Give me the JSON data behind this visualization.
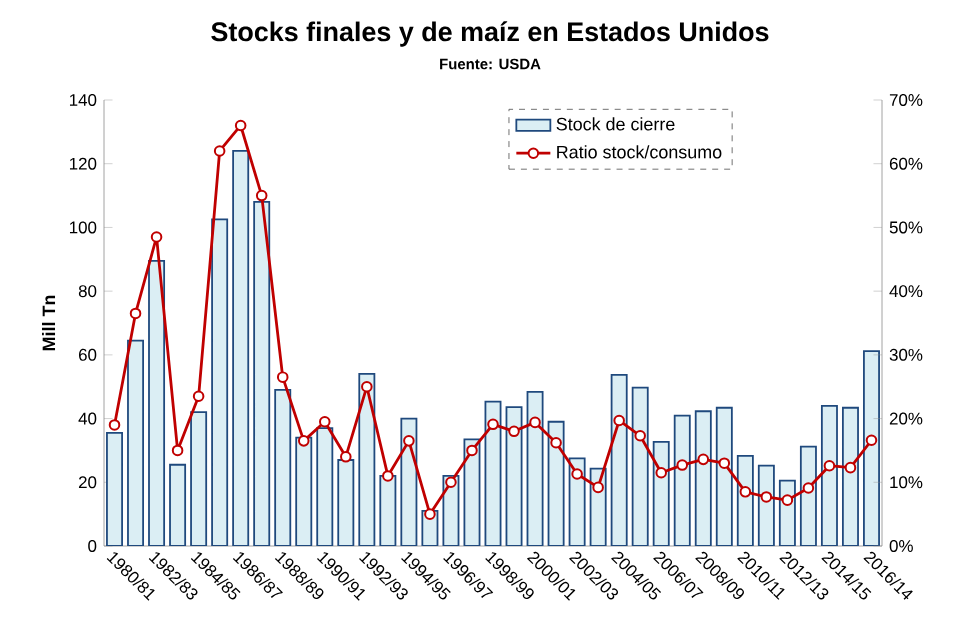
{
  "chart_data": {
    "type": "bar",
    "title": "Stocks finales y de maíz en Estados Unidos",
    "subtitle": "Fuente: USDA",
    "ylabel": "Mill Tn",
    "categories": [
      "1980/81",
      null,
      "1982/83",
      null,
      "1984/85",
      null,
      "1986/87",
      null,
      "1988/89",
      null,
      "1990/91",
      null,
      "1992/93",
      null,
      "1994/95",
      null,
      "1996/97",
      null,
      "1998/99",
      null,
      "2000/01",
      null,
      "2002/03",
      null,
      "2004/05",
      null,
      "2006/07",
      null,
      "2008/09",
      null,
      "2010/11",
      null,
      "2012/13",
      null,
      "2014/15",
      null,
      "2016/14"
    ],
    "series": [
      {
        "name": "Stock de cierre",
        "color": "#dbeef4",
        "values": [
          35.5,
          64.5,
          89.5,
          25.5,
          42,
          102.5,
          124,
          108,
          49,
          34,
          37,
          27,
          54,
          22,
          40,
          11,
          22,
          33.5,
          45.3,
          43.6,
          48.4,
          39,
          27.5,
          24.3,
          53.7,
          49.7,
          32.7,
          40.9,
          42.3,
          43.4,
          28.3,
          25.2,
          20.5,
          31.2,
          44,
          43.4,
          61.2
        ]
      },
      {
        "name": "Ratio stock/consumo",
        "type": "line",
        "axis": "y2",
        "color": "#c00000",
        "marker": "circle",
        "line_style": "solid",
        "values": [
          19,
          36.5,
          48.5,
          15,
          23.5,
          62,
          66,
          55,
          26.5,
          16.5,
          19.5,
          14,
          25,
          11,
          16.5,
          5,
          10,
          15,
          19.1,
          18,
          19.4,
          16.2,
          11.3,
          9.2,
          19.7,
          17.3,
          11.5,
          12.7,
          13.6,
          13,
          8.5,
          7.7,
          7.2,
          9.1,
          12.6,
          12.3,
          16.6
        ]
      }
    ],
    "ylim": [
      0,
      140
    ],
    "yticks": [
      0,
      20,
      40,
      60,
      80,
      100,
      120,
      140
    ],
    "y2lim": [
      0,
      70
    ],
    "y2ticks": [
      {
        "value": 0,
        "label": "0%"
      },
      {
        "value": 10,
        "label": "10%"
      },
      {
        "value": 20,
        "label": "20%"
      },
      {
        "value": 30,
        "label": "30%"
      },
      {
        "value": 40,
        "label": "40%"
      },
      {
        "value": 50,
        "label": "50%"
      },
      {
        "value": 60,
        "label": "60%"
      },
      {
        "value": 70,
        "label": "70%"
      }
    ],
    "legend": "top right"
  }
}
